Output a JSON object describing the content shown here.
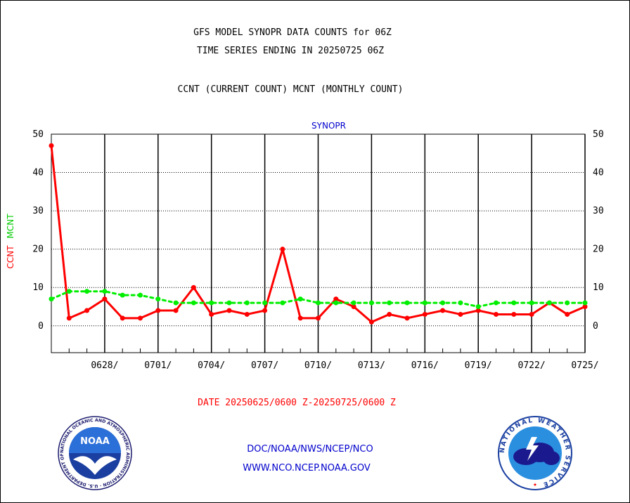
{
  "header": {
    "title_line1": "GFS MODEL SYNOPR DATA COUNTS for 06Z",
    "title_line2": "TIME SERIES ENDING IN 20250725 06Z",
    "subtitle": "CCNT (CURRENT COUNT) MCNT (MONTHLY COUNT)"
  },
  "chart_data": {
    "type": "line",
    "title": "SYNOPR",
    "ylabel_ccnt": "CCNT",
    "ylabel_mcnt": "MCNT",
    "xlabel": "DATE 20250625/0600 Z-20250725/0600 Z",
    "ylim": [
      -7,
      50
    ],
    "yticks": [
      0,
      10,
      20,
      30,
      40,
      50
    ],
    "xlim": [
      0,
      30
    ],
    "xtick_positions": [
      3,
      6,
      9,
      12,
      15,
      18,
      21,
      24,
      27,
      30
    ],
    "xtick_labels": [
      "0628/",
      "0701/",
      "0704/",
      "0707/",
      "0710/",
      "0713/",
      "0716/",
      "0719/",
      "0722/",
      "0725/"
    ],
    "grid": true,
    "series": [
      {
        "name": "CCNT",
        "color": "#ff0000",
        "style": "solid",
        "x": [
          0,
          1,
          2,
          3,
          4,
          5,
          6,
          7,
          8,
          9,
          10,
          11,
          12,
          13,
          14,
          15,
          16,
          17,
          18,
          19,
          20,
          21,
          22,
          23,
          24,
          25,
          26,
          27,
          28,
          29,
          30
        ],
        "values": [
          47,
          2,
          4,
          7,
          2,
          2,
          4,
          4,
          10,
          3,
          4,
          3,
          4,
          20,
          2,
          2,
          7,
          5,
          1,
          3,
          2,
          3,
          4,
          3,
          4,
          3,
          3,
          3,
          6,
          3,
          5
        ]
      },
      {
        "name": "MCNT",
        "color": "#00ee00",
        "style": "dotted",
        "x": [
          0,
          1,
          2,
          3,
          4,
          5,
          6,
          7,
          8,
          9,
          10,
          11,
          12,
          13,
          14,
          15,
          16,
          17,
          18,
          19,
          20,
          21,
          22,
          23,
          24,
          25,
          26,
          27,
          28,
          29,
          30
        ],
        "values": [
          7,
          9,
          9,
          9,
          8,
          8,
          7,
          6,
          6,
          6,
          6,
          6,
          6,
          6,
          7,
          6,
          6,
          6,
          6,
          6,
          6,
          6,
          6,
          6,
          5,
          6,
          6,
          6,
          6,
          6,
          6
        ]
      }
    ]
  },
  "footer": {
    "line1": "DOC/NOAA/NWS/NCEP/NCO",
    "line2": "WWW.NCO.NCEP.NOAA.GOV",
    "noaa_logo_text": "NOAA",
    "noaa_ring_text": "NATIONAL OCEANIC AND ATMOSPHERIC ADMINISTRATION · U.S. DEPARTMENT OF COMMERCE",
    "nws_ring_text": "NATIONAL WEATHER SERVICE"
  }
}
